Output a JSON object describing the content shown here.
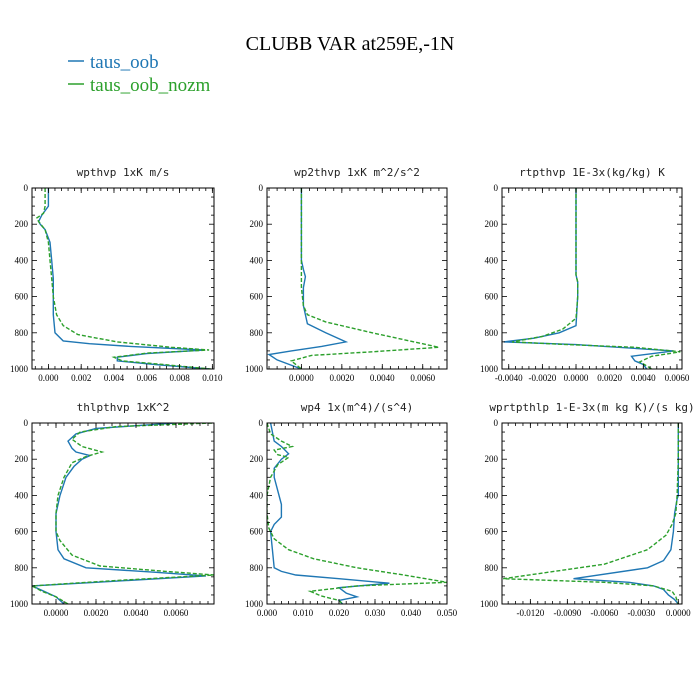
{
  "title": "CLUBB VAR at259E,-1N",
  "legend": [
    {
      "label": "taus_oob",
      "color": "#1f77b4",
      "dash": "solid"
    },
    {
      "label": "taus_oob_nozm",
      "color": "#2ca02c",
      "dash": "dashed"
    }
  ],
  "chart_data": [
    {
      "type": "line",
      "title": "wpthvp  1xK m/s",
      "xlim": [
        -0.001,
        0.0101
      ],
      "ylim": [
        1000,
        0
      ],
      "xticks": [
        0.0,
        0.002,
        0.004,
        0.006,
        0.008,
        0.01
      ],
      "xtick_labels": [
        "0.000",
        "0.002",
        "0.004",
        "0.006",
        "0.008",
        "0.010"
      ],
      "yticks": [
        0,
        200,
        400,
        600,
        800,
        1000
      ],
      "ytick_labels": [
        "0",
        "200",
        "400",
        "600",
        "800",
        "1000"
      ],
      "series": [
        {
          "name": "taus_oob",
          "x": [
            0.0,
            0.0,
            -0.0004,
            -0.0006,
            -0.0005,
            -0.0002,
            0.0001,
            0.0002,
            0.0003,
            0.0003,
            0.0003,
            0.0004,
            0.0009,
            0.0025,
            0.005,
            0.0095,
            0.006,
            0.0042,
            0.0042,
            0.0065,
            0.0098
          ],
          "y": [
            0,
            100,
            150,
            185,
            200,
            230,
            300,
            400,
            500,
            600,
            700,
            800,
            845,
            860,
            875,
            895,
            915,
            935,
            955,
            975,
            1000
          ]
        },
        {
          "name": "taus_oob_nozm",
          "x": [
            -0.0002,
            -0.0002,
            -0.0003,
            -0.0007,
            -0.0006,
            -0.0002,
            0.0,
            0.0001,
            0.0002,
            0.0003,
            0.0005,
            0.0009,
            0.0018,
            0.0042,
            0.0075,
            0.0098,
            0.006,
            0.004,
            0.0045,
            0.007,
            0.0099
          ],
          "y": [
            0,
            100,
            140,
            165,
            185,
            230,
            300,
            400,
            500,
            600,
            700,
            760,
            810,
            850,
            880,
            895,
            912,
            935,
            955,
            975,
            1000
          ]
        }
      ]
    },
    {
      "type": "line",
      "title": "wp2thvp  1xK m^2/s^2",
      "xlim": [
        -0.0017,
        0.0072
      ],
      "ylim": [
        1000,
        0
      ],
      "xticks": [
        0.0,
        0.002,
        0.004,
        0.006
      ],
      "xtick_labels": [
        "0.0000",
        "0.0020",
        "0.0040",
        "0.0060"
      ],
      "yticks": [
        0,
        200,
        400,
        600,
        800,
        1000
      ],
      "ytick_labels": [
        "0",
        "200",
        "400",
        "600",
        "800",
        "1000"
      ],
      "series": [
        {
          "name": "taus_oob",
          "x": [
            0.0,
            0.0,
            0.0,
            0.0,
            0.0001,
            0.0002,
            0.0001,
            0.0001,
            0.0003,
            0.0012,
            0.0022,
            0.001,
            -0.0005,
            -0.0016,
            -0.0012,
            0.0
          ],
          "y": [
            0,
            200,
            300,
            400,
            450,
            490,
            550,
            650,
            750,
            800,
            850,
            875,
            900,
            920,
            950,
            1000
          ]
        },
        {
          "name": "taus_oob_nozm",
          "x": [
            0.0,
            0.0,
            0.0,
            0.0,
            0.0,
            0.0,
            0.0,
            0.0001,
            0.0003,
            0.0012,
            0.0035,
            0.0068,
            0.0035,
            0.0005,
            -0.0005,
            0.0
          ],
          "y": [
            0,
            200,
            300,
            400,
            450,
            500,
            550,
            650,
            700,
            740,
            800,
            880,
            905,
            925,
            955,
            1000
          ]
        }
      ]
    },
    {
      "type": "line",
      "title": "rtpthvp  1E-3x(kg/kg) K",
      "xlim": [
        -0.0044,
        0.0063
      ],
      "ylim": [
        1000,
        0
      ],
      "xticks": [
        -0.004,
        -0.002,
        0.0,
        0.002,
        0.004,
        0.006
      ],
      "xtick_labels": [
        "-0.0040",
        "-0.0020",
        "0.0000",
        "0.0020",
        "0.0040",
        "0.0060"
      ],
      "yticks": [
        0,
        200,
        400,
        600,
        800,
        1000
      ],
      "ytick_labels": [
        "0",
        "200",
        "400",
        "600",
        "800",
        "1000"
      ],
      "series": [
        {
          "name": "taus_oob",
          "x": [
            0.0,
            0.0,
            0.0,
            0.0,
            0.0001,
            0.0001,
            0.0,
            -0.001,
            -0.0025,
            -0.0043,
            0.0,
            0.0058,
            0.0033,
            0.0035,
            0.004,
            0.0042
          ],
          "y": [
            0,
            200,
            400,
            480,
            520,
            600,
            760,
            800,
            830,
            850,
            865,
            900,
            930,
            955,
            975,
            1000
          ]
        },
        {
          "name": "taus_oob_nozm",
          "x": [
            0.0,
            0.0,
            0.0,
            0.0,
            0.0001,
            0.0001,
            0.0,
            -0.0008,
            -0.002,
            -0.0038,
            -0.0005,
            0.0035,
            0.0062,
            0.0045,
            0.0038,
            0.0045
          ],
          "y": [
            0,
            200,
            400,
            480,
            520,
            600,
            720,
            780,
            820,
            850,
            865,
            880,
            905,
            930,
            960,
            1000
          ]
        }
      ]
    },
    {
      "type": "line",
      "title": "thlpthvp  1xK^2",
      "xlim": [
        -0.0012,
        0.0079
      ],
      "ylim": [
        1000,
        0
      ],
      "xticks": [
        0.0,
        0.002,
        0.004,
        0.006
      ],
      "xtick_labels": [
        "0.0000",
        "0.0020",
        "0.0040",
        "0.0060"
      ],
      "yticks": [
        0,
        200,
        400,
        600,
        800,
        1000
      ],
      "ytick_labels": [
        "0",
        "200",
        "400",
        "600",
        "800",
        "1000"
      ],
      "series": [
        {
          "name": "taus_oob",
          "x": [
            0.006,
            0.002,
            0.001,
            0.0006,
            0.0008,
            0.001,
            0.0017,
            0.0013,
            0.0009,
            0.0005,
            0.0002,
            0.0,
            0.0,
            0.0001,
            0.0004,
            0.0015,
            0.005,
            0.0075,
            0.002,
            -0.0012,
            -0.0006,
            0.0,
            0.0004
          ],
          "y": [
            0,
            30,
            60,
            100,
            140,
            160,
            180,
            200,
            240,
            300,
            400,
            500,
            600,
            700,
            750,
            800,
            825,
            845,
            880,
            900,
            930,
            960,
            1000
          ]
        },
        {
          "name": "taus_oob_nozm",
          "x": [
            0.0078,
            0.003,
            0.0012,
            0.0008,
            0.0013,
            0.0023,
            0.0015,
            0.0008,
            0.0004,
            0.0001,
            0.0,
            0.0,
            0.0002,
            0.0008,
            0.0022,
            0.0055,
            0.0079,
            0.003,
            -0.0012,
            -0.0007,
            0.0,
            0.0006
          ],
          "y": [
            0,
            20,
            50,
            90,
            130,
            160,
            185,
            220,
            300,
            400,
            500,
            600,
            650,
            730,
            790,
            820,
            840,
            870,
            900,
            930,
            960,
            1000
          ]
        }
      ]
    },
    {
      "type": "line",
      "title": "wp4  1x(m^4)/(s^4)",
      "xlim": [
        0.0,
        0.05
      ],
      "ylim": [
        1000,
        0
      ],
      "xticks": [
        0.0,
        0.01,
        0.02,
        0.03,
        0.04,
        0.05
      ],
      "xtick_labels": [
        "0.000",
        "0.010",
        "0.020",
        "0.030",
        "0.040",
        "0.050"
      ],
      "yticks": [
        0,
        200,
        400,
        600,
        800,
        1000
      ],
      "ytick_labels": [
        "0",
        "200",
        "400",
        "600",
        "800",
        "1000"
      ],
      "series": [
        {
          "name": "taus_oob",
          "x": [
            0.001,
            0.002,
            0.004,
            0.005,
            0.006,
            0.004,
            0.002,
            0.002,
            0.004,
            0.004,
            0.002,
            0.001,
            0.0015,
            0.002,
            0.004,
            0.008,
            0.02,
            0.034,
            0.02,
            0.022,
            0.025,
            0.02,
            0.021
          ],
          "y": [
            0,
            100,
            130,
            150,
            170,
            200,
            250,
            300,
            450,
            520,
            560,
            600,
            700,
            800,
            820,
            840,
            860,
            885,
            910,
            940,
            960,
            980,
            1000
          ]
        },
        {
          "name": "taus_oob_nozm",
          "x": [
            0.0,
            0.001,
            0.004,
            0.007,
            0.002,
            0.003,
            0.006,
            0.003,
            0.001,
            0.0,
            0.0,
            0.0005,
            0.002,
            0.006,
            0.013,
            0.025,
            0.038,
            0.05,
            0.025,
            0.012,
            0.015,
            0.02,
            0.021
          ],
          "y": [
            0,
            60,
            100,
            130,
            150,
            175,
            190,
            230,
            300,
            400,
            500,
            580,
            640,
            700,
            750,
            800,
            840,
            880,
            900,
            930,
            955,
            980,
            1000
          ]
        }
      ]
    },
    {
      "type": "line",
      "title": "wprtpthlp  1-E-3x(m kg K)/(s kg)",
      "xlim": [
        -0.0143,
        0.0003
      ],
      "ylim": [
        1000,
        0
      ],
      "xticks": [
        -0.012,
        -0.009,
        -0.006,
        -0.003,
        0.0
      ],
      "xtick_labels": [
        "-0.0120",
        "-0.0090",
        "-0.0060",
        "-0.0030",
        "0.0000"
      ],
      "yticks": [
        0,
        200,
        400,
        600,
        800,
        1000
      ],
      "ytick_labels": [
        "0",
        "200",
        "400",
        "600",
        "800",
        "1000"
      ],
      "series": [
        {
          "name": "taus_oob",
          "x": [
            0.0,
            0.0,
            0.0,
            -0.0001,
            -0.0003,
            -0.0004,
            -0.0006,
            -0.0012,
            -0.0025,
            -0.0085,
            -0.004,
            -0.002,
            -0.0012,
            -0.0008,
            -0.0003,
            0.0
          ],
          "y": [
            0,
            200,
            400,
            420,
            500,
            600,
            700,
            760,
            800,
            860,
            880,
            900,
            920,
            950,
            975,
            1000
          ]
        },
        {
          "name": "taus_oob_nozm",
          "x": [
            0.0,
            0.0,
            -0.0001,
            -0.0002,
            -0.0005,
            -0.001,
            -0.0025,
            -0.006,
            -0.0142,
            -0.006,
            -0.002,
            -0.0005,
            -0.0002,
            0.0
          ],
          "y": [
            0,
            200,
            400,
            500,
            560,
            620,
            700,
            780,
            860,
            880,
            900,
            930,
            960,
            1000
          ]
        }
      ]
    }
  ]
}
